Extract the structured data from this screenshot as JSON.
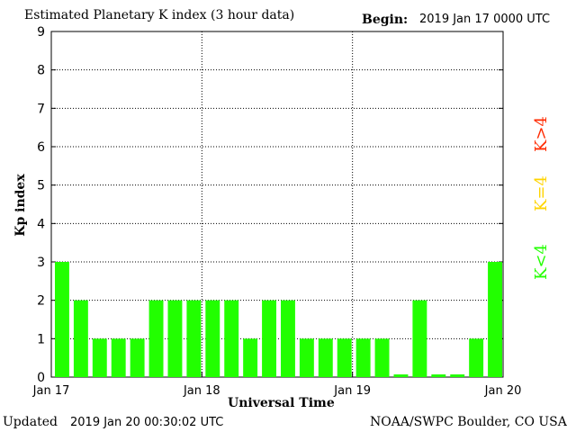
{
  "header": {
    "title": "Estimated Planetary K index (3 hour data)",
    "begin_label": "Begin:",
    "begin_value": "2019 Jan 17 0000 UTC"
  },
  "footer": {
    "updated_label": "Updated",
    "updated_value": "2019 Jan 20 00:30:02 UTC",
    "credit": "NOAA/SWPC Boulder, CO USA"
  },
  "legend": [
    {
      "label": "K>4",
      "color": "#ff2a00"
    },
    {
      "label": "K=4",
      "color": "#ffd400"
    },
    {
      "label": "K<4",
      "color": "#22ff00"
    }
  ],
  "chart_data": {
    "type": "bar",
    "title": "Estimated Planetary K index (3 hour data)",
    "xlabel": "Universal Time",
    "ylabel": "Kp index",
    "ylim": [
      0,
      9
    ],
    "yticks": [
      0,
      1,
      2,
      3,
      4,
      5,
      6,
      7,
      8,
      9
    ],
    "xticks": [
      "Jan 17",
      "Jan 18",
      "Jan 19",
      "Jan 20"
    ],
    "grid": "dotted",
    "bar_color": "#22ff00",
    "series": [
      {
        "values": [
          3,
          2,
          1,
          1,
          1,
          2,
          2,
          2,
          2,
          2,
          1,
          2,
          2,
          1,
          1,
          1,
          1,
          1,
          0.07,
          2,
          0.07,
          0.07,
          1,
          3
        ]
      }
    ]
  }
}
